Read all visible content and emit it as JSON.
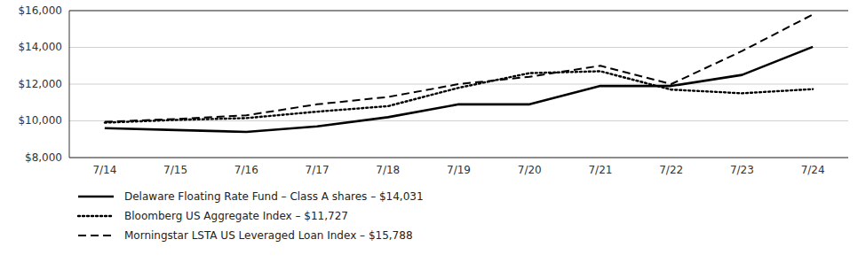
{
  "chart_data": {
    "type": "line",
    "categories": [
      "7/14",
      "7/15",
      "7/16",
      "7/17",
      "7/18",
      "7/19",
      "7/20",
      "7/21",
      "7/22",
      "7/23",
      "7/24"
    ],
    "series": [
      {
        "name": "Delaware Floating Rate Fund – Class A shares – $14,031",
        "color": "#000000",
        "line_style": "solid",
        "values": [
          9600,
          9500,
          9400,
          9700,
          10200,
          10900,
          10900,
          11900,
          11900,
          12500,
          14031
        ]
      },
      {
        "name": "Bloomberg US Aggregate Index – $11,727",
        "color": "#000000",
        "line_style": "dotted",
        "values": [
          9900,
          10050,
          10150,
          10500,
          10800,
          11800,
          12600,
          12700,
          11700,
          11500,
          11727
        ]
      },
      {
        "name": "Morningstar LSTA US Leveraged Loan Index – $15,788",
        "color": "#000000",
        "line_style": "dashed",
        "values": [
          9950,
          10100,
          10300,
          10900,
          11300,
          12000,
          12400,
          13000,
          12000,
          13800,
          15788
        ]
      }
    ],
    "ylim": [
      8000,
      16000
    ],
    "yticks": [
      {
        "value": 8000,
        "label": "$8,000"
      },
      {
        "value": 10000,
        "label": "$10,000"
      },
      {
        "value": 12000,
        "label": "$12,000"
      },
      {
        "value": 14000,
        "label": "$14,000"
      },
      {
        "value": 16000,
        "label": "$16,000"
      }
    ],
    "grid": true,
    "legend": "bottom"
  }
}
